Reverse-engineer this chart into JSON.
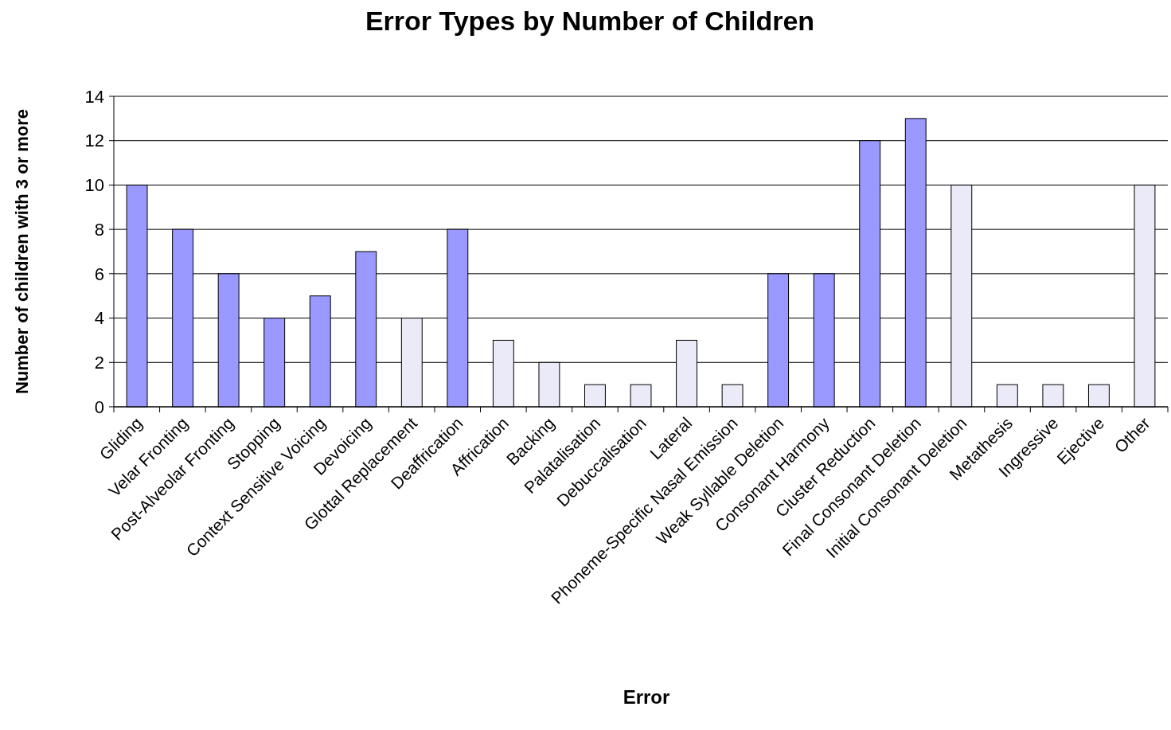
{
  "chart_data": {
    "type": "bar",
    "title": "Error Types by Number of Children",
    "xlabel": "Error",
    "ylabel": "Number of children with 3 or more",
    "categories": [
      "Gliding",
      "Velar Fronting",
      "Post-Alveolar Fronting",
      "Stopping",
      "Context Sensitive Voicing",
      "Devoicing",
      "Glottal Replacement",
      "Deaffrication",
      "Affrication",
      "Backing",
      "Palatalisation",
      "Debuccalisation",
      "Lateral",
      "Phoneme-Specific Nasal Emission",
      "Weak Syllable Deletion",
      "Consonant Harmony",
      "Cluster Reduction",
      "Final Consonant Deletion",
      "Initial Consonant Deletion",
      "Metathesis",
      "Ingressive",
      "Ejective",
      "Other"
    ],
    "values": [
      10,
      8,
      6,
      4,
      5,
      7,
      4,
      8,
      3,
      2,
      1,
      1,
      3,
      1,
      6,
      6,
      12,
      13,
      10,
      1,
      1,
      1,
      10
    ],
    "colors": [
      "#9999ff",
      "#9999ff",
      "#9999ff",
      "#9999ff",
      "#9999ff",
      "#9999ff",
      "#eaeaf8",
      "#9999ff",
      "#eaeaf8",
      "#eaeaf8",
      "#eaeaf8",
      "#eaeaf8",
      "#eaeaf8",
      "#eaeaf8",
      "#9999ff",
      "#9999ff",
      "#9999ff",
      "#9999ff",
      "#eaeaf8",
      "#eaeaf8",
      "#eaeaf8",
      "#eaeaf8",
      "#eaeaf8"
    ],
    "ylim": [
      0,
      14
    ],
    "yticks": [
      0,
      2,
      4,
      6,
      8,
      10,
      12,
      14
    ],
    "grid": "y"
  }
}
